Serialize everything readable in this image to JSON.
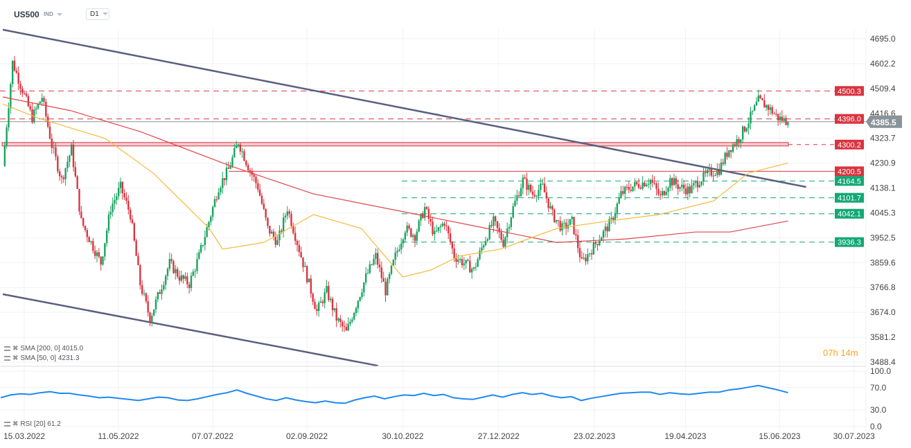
{
  "header": {
    "symbol": "US500",
    "market": "IND",
    "timeframe": "D1"
  },
  "colors": {
    "bull": "#17a35e",
    "bear": "#d9343f",
    "sma200": "#e0454a",
    "sma50": "#f6b93b",
    "trendline": "#5a5f80",
    "rsi": "#1e88f0",
    "resistance": "#d9343f",
    "support": "#12a876",
    "current": "#8a9399"
  },
  "indicators": {
    "sma200": "SMA [200,  0] 4015.0",
    "sma50": "SMA [50,  0] 4231.3",
    "rsi": "RSI [20]  61.2"
  },
  "countdown": {
    "hours": "07h",
    "minutes": "14m"
  },
  "chart_data": {
    "type": "candlestick",
    "x_range": [
      "2022-03-02",
      "2023-07-30"
    ],
    "ylim": [
      3488.4,
      4695.0
    ],
    "price_ticks": [
      "4695.0",
      "4602.2",
      "4509.4",
      "4416.6",
      "4323.7",
      "4230.9",
      "4138.1",
      "4045.3",
      "3952.5",
      "3859.6",
      "3766.8",
      "3674.0",
      "3581.2",
      "3488.4"
    ],
    "date_ticks": [
      "15.03.2022",
      "11.05.2022",
      "07.07.2022",
      "02.09.2022",
      "30.10.2022",
      "27.12.2022",
      "23.02.2023",
      "19.04.2023",
      "15.06.2023",
      "30.07.2023"
    ],
    "close_range": [
      "2022-03-02",
      "2023-06-20"
    ],
    "closes": [
      4220,
      4607,
      4504,
      4400,
      4478,
      4297,
      4168,
      4284,
      4013,
      3935,
      3858,
      4064,
      4142,
      4039,
      3780,
      3651,
      3754,
      3858,
      3806,
      3780,
      3884,
      4013,
      4142,
      4207,
      4310,
      4220,
      4142,
      3987,
      3935,
      4064,
      3935,
      3806,
      3677,
      3754,
      3651,
      3599,
      3703,
      3806,
      3884,
      3754,
      3884,
      3987,
      3961,
      4064,
      3961,
      4013,
      3884,
      3858,
      3832,
      3935,
      4013,
      3935,
      4064,
      4168,
      4116,
      4142,
      4039,
      3987,
      4013,
      3858,
      3910,
      3961,
      4013,
      4116,
      4142,
      4155,
      4168,
      4103,
      4168,
      4142,
      4129,
      4168,
      4194,
      4207,
      4284,
      4323,
      4388,
      4465,
      4439,
      4400,
      4385.5
    ],
    "sma200": [
      [
        "2022-03-02",
        4478
      ],
      [
        "2022-04-12",
        4427
      ],
      [
        "2022-05-24",
        4349
      ],
      [
        "2022-07-18",
        4220
      ],
      [
        "2022-09-06",
        4116
      ],
      [
        "2022-11-08",
        4039
      ],
      [
        "2022-12-20",
        3987
      ],
      [
        "2023-01-31",
        3935
      ],
      [
        "2023-03-14",
        3948
      ],
      [
        "2023-04-25",
        3974
      ],
      [
        "2023-05-16",
        3974
      ],
      [
        "2023-06-20",
        4015
      ]
    ],
    "sma50": [
      [
        "2022-03-02",
        4452
      ],
      [
        "2022-03-23",
        4400
      ],
      [
        "2022-05-03",
        4323
      ],
      [
        "2022-06-01",
        4194
      ],
      [
        "2022-07-05",
        3987
      ],
      [
        "2022-07-13",
        3910
      ],
      [
        "2022-08-07",
        3935
      ],
      [
        "2022-09-06",
        4039
      ],
      [
        "2022-10-05",
        3987
      ],
      [
        "2022-10-30",
        3806
      ],
      [
        "2022-11-16",
        3832
      ],
      [
        "2022-12-03",
        3884
      ],
      [
        "2022-12-28",
        3910
      ],
      [
        "2023-01-31",
        3987
      ],
      [
        "2023-03-01",
        4013
      ],
      [
        "2023-04-03",
        4039
      ],
      [
        "2023-05-06",
        4090
      ],
      [
        "2023-05-27",
        4194
      ],
      [
        "2023-06-20",
        4231.3
      ]
    ],
    "levels": [
      {
        "value": 4500.3,
        "label": "4500.3",
        "kind": "resistance",
        "style": "dashed"
      },
      {
        "value": 4396.0,
        "label": "4396.0",
        "kind": "resistance",
        "style": "dashed"
      },
      {
        "value": 4300.2,
        "label": "4300.2",
        "kind": "resistance",
        "style": "zone"
      },
      {
        "value": 4200.5,
        "label": "4200.5",
        "kind": "resistance",
        "style": "solid"
      },
      {
        "value": 4164.5,
        "label": "4164.5",
        "kind": "support",
        "style": "dashed"
      },
      {
        "value": 4101.7,
        "label": "4101.7",
        "kind": "support",
        "style": "dashed"
      },
      {
        "value": 4042.1,
        "label": "4042.1",
        "kind": "support",
        "style": "dashed"
      },
      {
        "value": 3936.3,
        "label": "3936.3",
        "kind": "support",
        "style": "dashed"
      }
    ],
    "current_price": {
      "value": 4385.5,
      "label": "4385.5"
    },
    "trendlines": [
      [
        [
          "2022-03-02",
          4729
        ],
        [
          "2023-07-01",
          4142
        ]
      ],
      [
        [
          "2022-03-02",
          3742
        ],
        [
          "2022-10-15",
          3475
        ]
      ]
    ],
    "rsi": {
      "ylim": [
        0,
        100
      ],
      "ticks": [
        "100.0",
        "70.0",
        "30.0",
        "0.0"
      ],
      "values": [
        52,
        57,
        59,
        58,
        61,
        63,
        60,
        60,
        57,
        55,
        52,
        53,
        51,
        49,
        47,
        50,
        53,
        52,
        48,
        47,
        50,
        54,
        58,
        61,
        66,
        60,
        55,
        50,
        47,
        52,
        48,
        45,
        43,
        46,
        43,
        42,
        48,
        52,
        55,
        50,
        54,
        57,
        56,
        60,
        56,
        58,
        52,
        50,
        49,
        53,
        57,
        53,
        58,
        61,
        58,
        60,
        55,
        52,
        54,
        47,
        51,
        54,
        57,
        60,
        61,
        62,
        62,
        58,
        61,
        59,
        58,
        60,
        62,
        62,
        66,
        68,
        71,
        74,
        70,
        66,
        61.2
      ]
    }
  }
}
